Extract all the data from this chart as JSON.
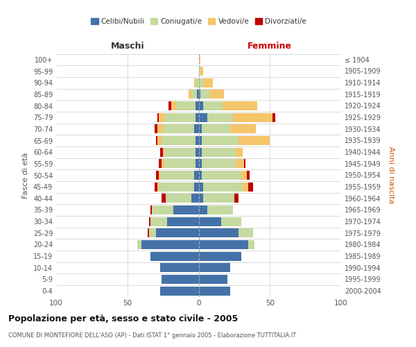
{
  "age_groups": [
    "0-4",
    "5-9",
    "10-14",
    "15-19",
    "20-24",
    "25-29",
    "30-34",
    "35-39",
    "40-44",
    "45-49",
    "50-54",
    "55-59",
    "60-64",
    "65-69",
    "70-74",
    "75-79",
    "80-84",
    "85-89",
    "90-94",
    "95-99",
    "100+"
  ],
  "birth_years": [
    "2000-2004",
    "1995-1999",
    "1990-1994",
    "1985-1989",
    "1980-1984",
    "1975-1979",
    "1970-1974",
    "1965-1969",
    "1960-1964",
    "1955-1959",
    "1950-1954",
    "1945-1949",
    "1940-1944",
    "1935-1939",
    "1930-1934",
    "1925-1929",
    "1920-1924",
    "1915-1919",
    "1910-1914",
    "1905-1909",
    "≤ 1904"
  ],
  "male_celibi": [
    27,
    26,
    27,
    34,
    40,
    30,
    22,
    18,
    5,
    3,
    3,
    2,
    2,
    2,
    3,
    2,
    2,
    1,
    0,
    0,
    0
  ],
  "male_coniugati": [
    0,
    0,
    0,
    0,
    3,
    5,
    12,
    15,
    18,
    25,
    24,
    22,
    22,
    24,
    22,
    22,
    14,
    4,
    2,
    0,
    0
  ],
  "male_vedovi": [
    0,
    0,
    0,
    0,
    0,
    0,
    0,
    0,
    0,
    1,
    1,
    2,
    1,
    3,
    4,
    4,
    3,
    2,
    1,
    0,
    0
  ],
  "male_divorziati": [
    0,
    0,
    0,
    0,
    0,
    1,
    1,
    1,
    3,
    2,
    2,
    2,
    2,
    1,
    2,
    1,
    2,
    0,
    0,
    0,
    0
  ],
  "female_celibi": [
    22,
    20,
    22,
    30,
    35,
    28,
    16,
    6,
    3,
    3,
    2,
    2,
    2,
    2,
    2,
    6,
    3,
    1,
    0,
    0,
    0
  ],
  "female_coniugati": [
    0,
    0,
    0,
    0,
    4,
    10,
    14,
    18,
    22,
    28,
    28,
    24,
    24,
    26,
    20,
    18,
    14,
    7,
    3,
    1,
    0
  ],
  "female_vedovi": [
    0,
    0,
    0,
    0,
    0,
    0,
    0,
    0,
    0,
    4,
    4,
    6,
    5,
    22,
    18,
    28,
    24,
    10,
    7,
    2,
    1
  ],
  "female_divorziati": [
    0,
    0,
    0,
    0,
    0,
    0,
    0,
    0,
    3,
    3,
    2,
    1,
    0,
    0,
    0,
    2,
    0,
    0,
    0,
    0,
    0
  ],
  "color_celibi": "#4472a8",
  "color_coniugati": "#c5d9a0",
  "color_vedovi": "#f5c56a",
  "color_divorziati": "#c00000",
  "title": "Popolazione per età, sesso e stato civile - 2005",
  "subtitle": "COMUNE DI MONTEFIORE DELL'ASO (AP) - Dati ISTAT 1° gennaio 2005 - Elaborazione TUTTITALIA.IT",
  "ylabel_left": "Fasce di età",
  "ylabel_right": "Anni di nascita",
  "xlim": 100,
  "background": "#ffffff",
  "maschi_label": "Maschi",
  "femmine_label": "Femmine",
  "legend_labels": [
    "Celibi/Nubili",
    "Coniugati/e",
    "Vedovi/e",
    "Divorziati/e"
  ],
  "xtick_labels": [
    "100",
    "50",
    "0",
    "50",
    "100"
  ]
}
